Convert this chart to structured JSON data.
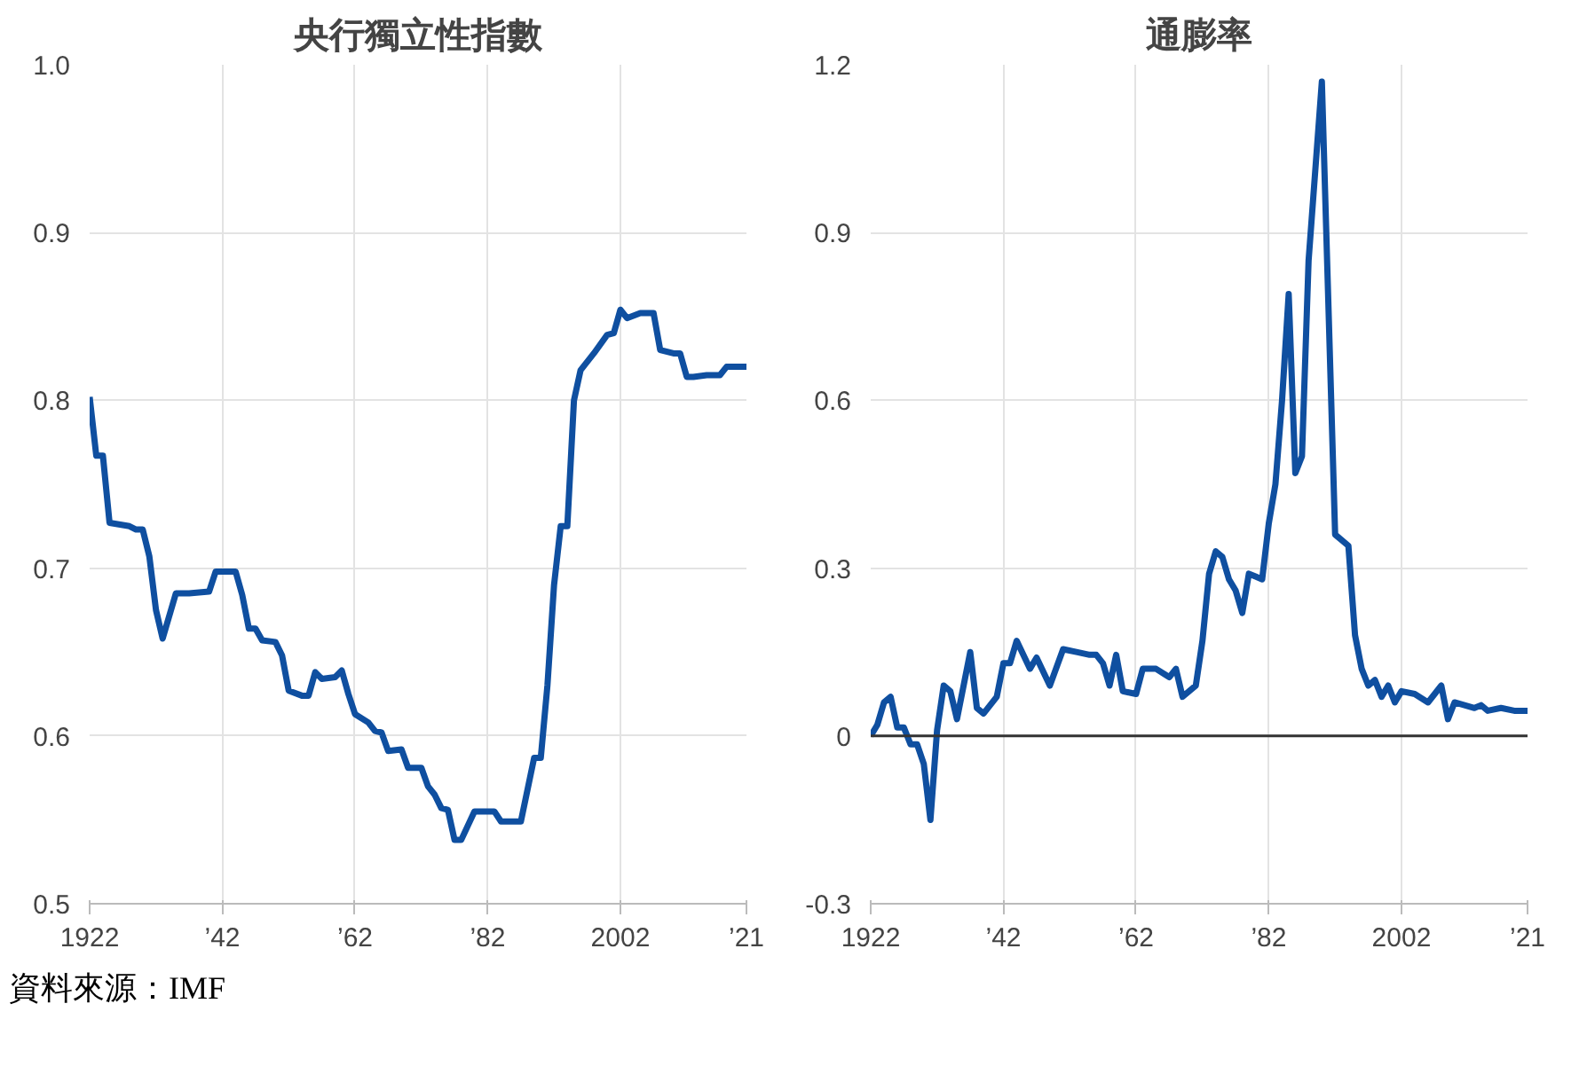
{
  "chart_data": [
    {
      "type": "line",
      "title": "央行獨立性指數",
      "x": [
        1922,
        1923,
        1924,
        1925,
        1928,
        1929,
        1930,
        1931,
        1932,
        1933,
        1935,
        1937,
        1940,
        1941,
        1944,
        1945,
        1946,
        1947,
        1948,
        1950,
        1951,
        1952,
        1954,
        1955,
        1956,
        1957,
        1959,
        1960,
        1961,
        1962,
        1964,
        1965,
        1966,
        1967,
        1969,
        1970,
        1972,
        1973,
        1974,
        1975,
        1976,
        1977,
        1978,
        1980,
        1983,
        1984,
        1987,
        1989,
        1990,
        1991,
        1992,
        1993,
        1994,
        1995,
        1996,
        1998,
        2000,
        2001,
        2002,
        2003,
        2005,
        2007,
        2008,
        2010,
        2011,
        2012,
        2013,
        2015,
        2017,
        2018,
        2021
      ],
      "series": [
        {
          "color": "#0f4fa0",
          "values": [
            0.802,
            0.767,
            0.767,
            0.727,
            0.725,
            0.723,
            0.723,
            0.707,
            0.675,
            0.658,
            0.685,
            0.685,
            0.686,
            0.698,
            0.698,
            0.684,
            0.664,
            0.664,
            0.657,
            0.656,
            0.648,
            0.627,
            0.624,
            0.624,
            0.638,
            0.634,
            0.635,
            0.639,
            0.625,
            0.613,
            0.608,
            0.603,
            0.602,
            0.591,
            0.592,
            0.581,
            0.581,
            0.57,
            0.565,
            0.557,
            0.556,
            0.538,
            0.538,
            0.555,
            0.555,
            0.549,
            0.549,
            0.587,
            0.587,
            0.63,
            0.69,
            0.725,
            0.725,
            0.8,
            0.818,
            0.828,
            0.839,
            0.84,
            0.854,
            0.849,
            0.852,
            0.852,
            0.83,
            0.828,
            0.828,
            0.814,
            0.814,
            0.815,
            0.815,
            0.82,
            0.82
          ]
        }
      ],
      "xlim": [
        1922,
        2021
      ],
      "xticks": [
        1922,
        {
          "value": 1942,
          "label": "’42"
        },
        {
          "value": 1962,
          "label": "’62"
        },
        {
          "value": 1982,
          "label": "’82"
        },
        2002,
        {
          "value": 2021,
          "label": "’21"
        }
      ],
      "ylim": [
        0.5,
        1.0
      ],
      "yticks": [
        0.5,
        0.6,
        0.7,
        0.8,
        0.9,
        {
          "value": 1,
          "label": "1.0"
        }
      ],
      "grid": true,
      "marker": "none",
      "line_style": "solid",
      "annotations": [
        "資料來源：IMF"
      ]
    },
    {
      "type": "line",
      "title": "通膨率",
      "x": [
        1922,
        1923,
        1924,
        1925,
        1926,
        1927,
        1928,
        1929,
        1930,
        1931,
        1932,
        1933,
        1934,
        1935,
        1937,
        1938,
        1939,
        1941,
        1942,
        1943,
        1944,
        1946,
        1947,
        1949,
        1951,
        1953,
        1955,
        1956,
        1957,
        1958,
        1959,
        1960,
        1962,
        1963,
        1965,
        1967,
        1968,
        1969,
        1971,
        1972,
        1973,
        1974,
        1975,
        1976,
        1977,
        1978,
        1979,
        1980,
        1981,
        1982,
        1983,
        1984,
        1985,
        1986,
        1987,
        1988,
        1990,
        1992,
        1994,
        1995,
        1996,
        1997,
        1998,
        1999,
        2000,
        2001,
        2002,
        2004,
        2006,
        2008,
        2009,
        2010,
        2013,
        2014,
        2015,
        2017,
        2019,
        2021
      ],
      "series": [
        {
          "color": "#0f4fa0",
          "values": [
            0.0,
            0.02,
            0.06,
            0.07,
            0.015,
            0.015,
            -0.015,
            -0.015,
            -0.05,
            -0.15,
            0.01,
            0.09,
            0.08,
            0.03,
            0.15,
            0.05,
            0.04,
            0.07,
            0.13,
            0.13,
            0.17,
            0.12,
            0.14,
            0.09,
            0.155,
            0.15,
            0.145,
            0.145,
            0.13,
            0.09,
            0.145,
            0.08,
            0.075,
            0.12,
            0.12,
            0.105,
            0.12,
            0.07,
            0.09,
            0.17,
            0.29,
            0.33,
            0.32,
            0.28,
            0.26,
            0.22,
            0.29,
            0.285,
            0.28,
            0.38,
            0.45,
            0.6,
            0.79,
            0.47,
            0.5,
            0.85,
            1.17,
            0.36,
            0.34,
            0.18,
            0.12,
            0.09,
            0.1,
            0.07,
            0.09,
            0.06,
            0.08,
            0.075,
            0.06,
            0.09,
            0.03,
            0.06,
            0.05,
            0.055,
            0.045,
            0.05,
            0.045,
            0.045
          ]
        }
      ],
      "xlim": [
        1922,
        2021
      ],
      "xticks": [
        1922,
        {
          "value": 1942,
          "label": "’42"
        },
        {
          "value": 1962,
          "label": "’62"
        },
        {
          "value": 1982,
          "label": "’82"
        },
        2002,
        {
          "value": 2021,
          "label": "’21"
        }
      ],
      "ylim": [
        -0.3,
        1.2
      ],
      "yticks": [
        -0.3,
        0,
        0.3,
        0.6,
        0.9,
        1.2
      ],
      "ref_lines": [
        {
          "axis": "y",
          "value": 0,
          "color": "#333333"
        }
      ],
      "grid": true,
      "marker": "none",
      "line_style": "solid"
    }
  ]
}
